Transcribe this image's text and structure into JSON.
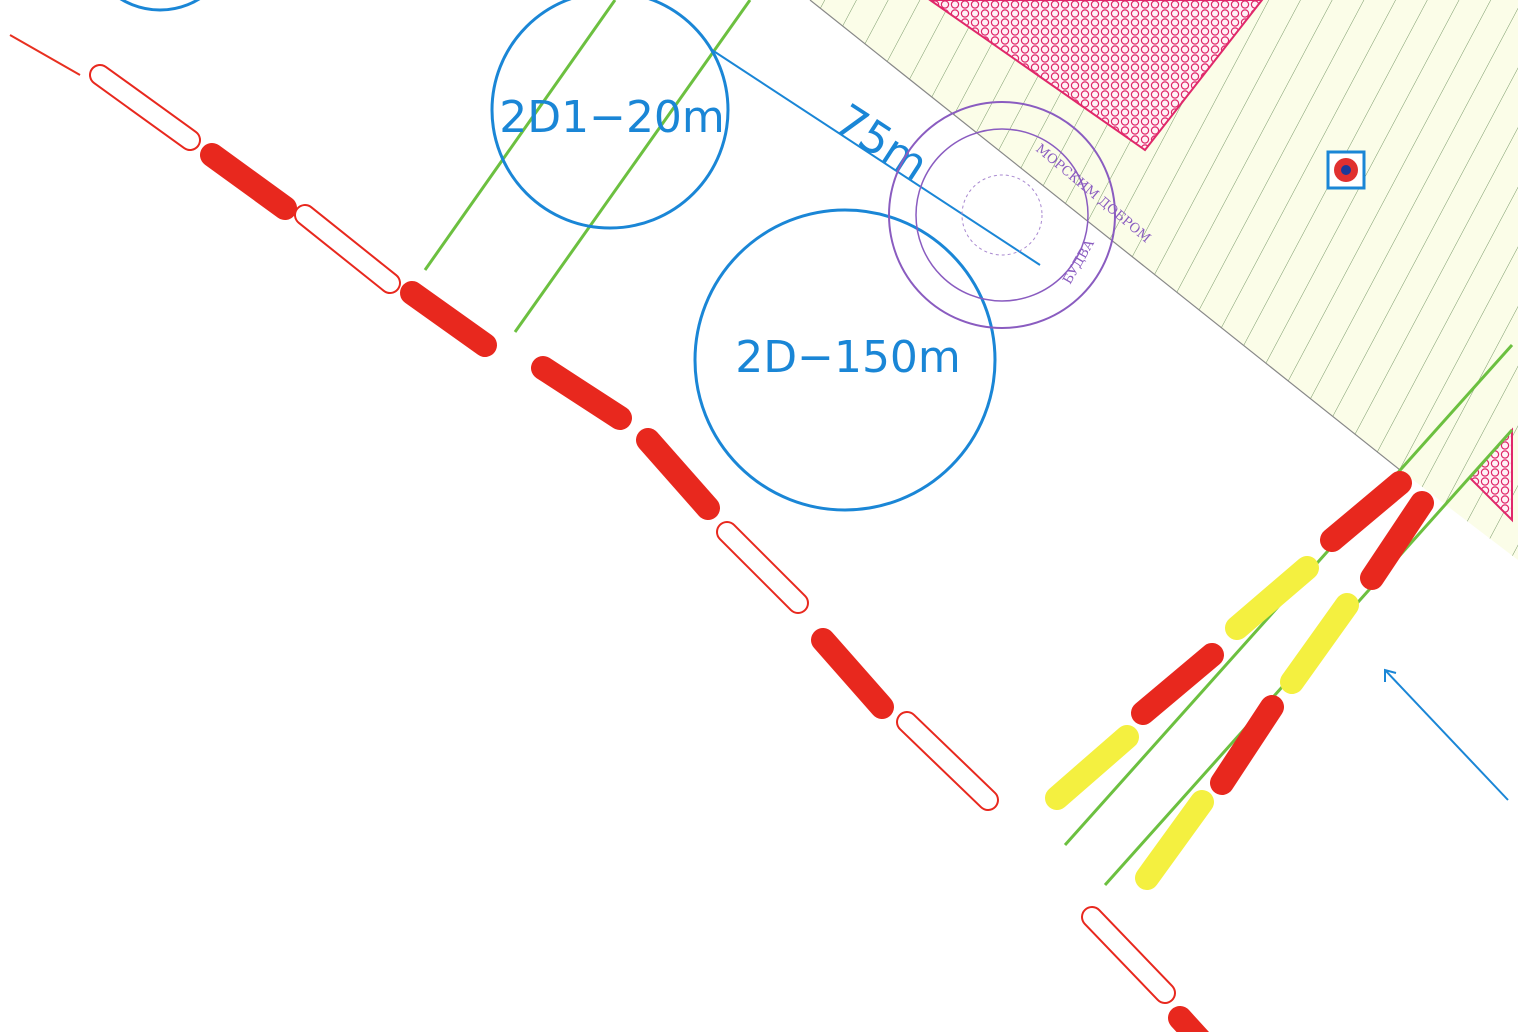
{
  "labels": {
    "zone_small": "2D1−20m",
    "distance": "75m",
    "zone_large": "2D−150m"
  },
  "stamp": {
    "top": "МОРСКИМ ДОБРОМ",
    "bottom": "БУДВА"
  }
}
